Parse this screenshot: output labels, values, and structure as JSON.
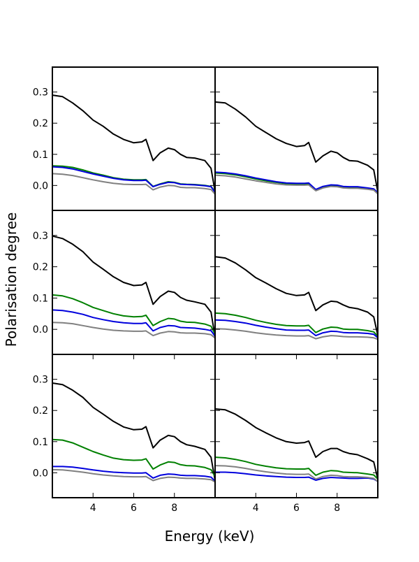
{
  "figure": {
    "xlabel": "Energy (keV)",
    "ylabel": "Polarisation degree"
  },
  "series_colors": {
    "black": "#000000",
    "green": "#008000",
    "blue": "#0000dd",
    "gray": "#808080"
  },
  "chart_data": [
    {
      "type": "line",
      "panel": "row1-left",
      "xlim": [
        2,
        10
      ],
      "ylim": [
        -0.08,
        0.38
      ],
      "xticks": [],
      "yticks": [
        0.0,
        0.1,
        0.2,
        0.3
      ],
      "x": [
        2.0,
        2.5,
        3.0,
        3.5,
        4.0,
        4.5,
        5.0,
        5.5,
        6.0,
        6.4,
        6.6,
        6.95,
        7.3,
        7.7,
        8.0,
        8.3,
        8.6,
        9.0,
        9.5,
        9.8,
        10.0
      ],
      "series": [
        {
          "color": "black",
          "values": [
            0.29,
            0.285,
            0.265,
            0.24,
            0.21,
            0.19,
            0.165,
            0.148,
            0.137,
            0.14,
            0.148,
            0.08,
            0.105,
            0.12,
            0.115,
            0.1,
            0.09,
            0.088,
            0.08,
            0.055,
            -0.02
          ]
        },
        {
          "color": "green",
          "values": [
            0.063,
            0.062,
            0.058,
            0.05,
            0.04,
            0.033,
            0.025,
            0.02,
            0.018,
            0.018,
            0.019,
            -0.003,
            0.005,
            0.012,
            0.01,
            0.005,
            0.004,
            0.003,
            0.0,
            -0.003,
            -0.02
          ]
        },
        {
          "color": "blue",
          "values": [
            0.06,
            0.058,
            0.053,
            0.045,
            0.037,
            0.03,
            0.023,
            0.018,
            0.016,
            0.016,
            0.017,
            -0.004,
            0.004,
            0.01,
            0.009,
            0.004,
            0.003,
            0.002,
            -0.001,
            -0.004,
            -0.022
          ]
        },
        {
          "color": "gray",
          "values": [
            0.038,
            0.036,
            0.032,
            0.025,
            0.018,
            0.012,
            0.007,
            0.004,
            0.003,
            0.003,
            0.004,
            -0.014,
            -0.005,
            0.0,
            -0.001,
            -0.006,
            -0.007,
            -0.007,
            -0.01,
            -0.013,
            -0.028
          ]
        }
      ]
    },
    {
      "type": "line",
      "panel": "row1-right",
      "xlim": [
        2,
        10
      ],
      "ylim": [
        -0.08,
        0.38
      ],
      "xticks": [],
      "yticks": [
        0.0,
        0.1,
        0.2,
        0.3
      ],
      "x": [
        2.0,
        2.5,
        3.0,
        3.5,
        4.0,
        4.5,
        5.0,
        5.5,
        6.0,
        6.4,
        6.6,
        6.95,
        7.3,
        7.7,
        8.0,
        8.3,
        8.6,
        9.0,
        9.5,
        9.8,
        10.0
      ],
      "series": [
        {
          "color": "black",
          "values": [
            0.268,
            0.265,
            0.245,
            0.22,
            0.19,
            0.17,
            0.15,
            0.135,
            0.125,
            0.128,
            0.138,
            0.075,
            0.095,
            0.11,
            0.105,
            0.09,
            0.08,
            0.078,
            0.065,
            0.05,
            -0.02
          ]
        },
        {
          "color": "green",
          "values": [
            0.04,
            0.038,
            0.034,
            0.028,
            0.021,
            0.015,
            0.01,
            0.006,
            0.005,
            0.005,
            0.006,
            -0.015,
            -0.005,
            0.0,
            -0.001,
            -0.005,
            -0.006,
            -0.006,
            -0.01,
            -0.013,
            -0.025
          ]
        },
        {
          "color": "blue",
          "values": [
            0.043,
            0.041,
            0.037,
            0.031,
            0.024,
            0.018,
            0.012,
            0.008,
            0.007,
            0.007,
            0.008,
            -0.013,
            -0.003,
            0.002,
            0.001,
            -0.003,
            -0.004,
            -0.004,
            -0.008,
            -0.011,
            -0.023
          ]
        },
        {
          "color": "gray",
          "values": [
            0.033,
            0.031,
            0.027,
            0.021,
            0.015,
            0.01,
            0.005,
            0.002,
            0.001,
            0.001,
            0.002,
            -0.017,
            -0.008,
            -0.003,
            -0.004,
            -0.008,
            -0.009,
            -0.009,
            -0.012,
            -0.015,
            -0.027
          ]
        }
      ]
    },
    {
      "type": "line",
      "panel": "row2-left",
      "xlim": [
        2,
        10
      ],
      "ylim": [
        -0.08,
        0.38
      ],
      "xticks": [],
      "yticks": [
        0.0,
        0.1,
        0.2,
        0.3
      ],
      "x": [
        2.0,
        2.5,
        3.0,
        3.5,
        4.0,
        4.5,
        5.0,
        5.5,
        6.0,
        6.4,
        6.6,
        6.95,
        7.3,
        7.7,
        8.0,
        8.3,
        8.6,
        9.0,
        9.5,
        9.8,
        10.0
      ],
      "series": [
        {
          "color": "black",
          "values": [
            0.298,
            0.29,
            0.272,
            0.248,
            0.215,
            0.192,
            0.168,
            0.15,
            0.14,
            0.142,
            0.15,
            0.08,
            0.105,
            0.122,
            0.118,
            0.102,
            0.093,
            0.088,
            0.08,
            0.055,
            -0.025
          ]
        },
        {
          "color": "green",
          "values": [
            0.11,
            0.107,
            0.098,
            0.085,
            0.07,
            0.06,
            0.05,
            0.043,
            0.04,
            0.041,
            0.045,
            0.012,
            0.025,
            0.035,
            0.033,
            0.026,
            0.023,
            0.022,
            0.017,
            0.01,
            -0.015
          ]
        },
        {
          "color": "blue",
          "values": [
            0.062,
            0.06,
            0.055,
            0.048,
            0.038,
            0.031,
            0.025,
            0.021,
            0.019,
            0.019,
            0.021,
            -0.005,
            0.006,
            0.012,
            0.011,
            0.006,
            0.005,
            0.004,
            0.0,
            -0.004,
            -0.022
          ]
        },
        {
          "color": "gray",
          "values": [
            0.022,
            0.021,
            0.018,
            0.012,
            0.006,
            0.001,
            -0.003,
            -0.005,
            -0.006,
            -0.006,
            -0.005,
            -0.02,
            -0.012,
            -0.007,
            -0.008,
            -0.011,
            -0.012,
            -0.012,
            -0.014,
            -0.017,
            -0.028
          ]
        }
      ]
    },
    {
      "type": "line",
      "panel": "row2-right",
      "xlim": [
        2,
        10
      ],
      "ylim": [
        -0.08,
        0.38
      ],
      "xticks": [],
      "yticks": [
        0.0,
        0.1,
        0.2,
        0.3
      ],
      "x": [
        2.0,
        2.5,
        3.0,
        3.5,
        4.0,
        4.5,
        5.0,
        5.5,
        6.0,
        6.4,
        6.6,
        6.95,
        7.3,
        7.7,
        8.0,
        8.3,
        8.6,
        9.0,
        9.5,
        9.8,
        10.0
      ],
      "series": [
        {
          "color": "black",
          "values": [
            0.232,
            0.228,
            0.212,
            0.19,
            0.165,
            0.148,
            0.13,
            0.115,
            0.108,
            0.11,
            0.118,
            0.06,
            0.078,
            0.09,
            0.088,
            0.078,
            0.07,
            0.066,
            0.055,
            0.04,
            -0.02
          ]
        },
        {
          "color": "green",
          "values": [
            0.052,
            0.05,
            0.045,
            0.038,
            0.029,
            0.022,
            0.016,
            0.012,
            0.011,
            0.011,
            0.013,
            -0.01,
            0.001,
            0.007,
            0.006,
            0.001,
            0.0,
            0.0,
            -0.004,
            -0.008,
            -0.022
          ]
        },
        {
          "color": "blue",
          "values": [
            0.03,
            0.029,
            0.025,
            0.02,
            0.013,
            0.007,
            0.002,
            -0.002,
            -0.003,
            -0.003,
            -0.002,
            -0.02,
            -0.011,
            -0.006,
            -0.007,
            -0.01,
            -0.011,
            -0.011,
            -0.013,
            -0.016,
            -0.027
          ]
        },
        {
          "color": "gray",
          "values": [
            0.002,
            0.001,
            -0.002,
            -0.006,
            -0.011,
            -0.015,
            -0.018,
            -0.02,
            -0.021,
            -0.021,
            -0.02,
            -0.03,
            -0.024,
            -0.02,
            -0.021,
            -0.023,
            -0.024,
            -0.024,
            -0.025,
            -0.027,
            -0.032
          ]
        }
      ]
    },
    {
      "type": "line",
      "panel": "row3-left",
      "xlim": [
        2,
        10
      ],
      "ylim": [
        -0.08,
        0.38
      ],
      "xticks": [
        4,
        6,
        8
      ],
      "yticks": [
        0.0,
        0.1,
        0.2,
        0.3
      ],
      "x": [
        2.0,
        2.5,
        3.0,
        3.5,
        4.0,
        4.5,
        5.0,
        5.5,
        6.0,
        6.4,
        6.6,
        6.95,
        7.3,
        7.7,
        8.0,
        8.3,
        8.6,
        9.0,
        9.5,
        9.8,
        10.0
      ],
      "series": [
        {
          "color": "black",
          "values": [
            0.288,
            0.283,
            0.265,
            0.242,
            0.21,
            0.188,
            0.165,
            0.147,
            0.138,
            0.14,
            0.148,
            0.08,
            0.105,
            0.12,
            0.116,
            0.1,
            0.09,
            0.085,
            0.075,
            0.05,
            -0.025
          ]
        },
        {
          "color": "green",
          "values": [
            0.107,
            0.105,
            0.096,
            0.082,
            0.068,
            0.057,
            0.047,
            0.042,
            0.04,
            0.041,
            0.045,
            0.012,
            0.025,
            0.035,
            0.033,
            0.026,
            0.023,
            0.022,
            0.017,
            0.01,
            -0.012
          ]
        },
        {
          "color": "blue",
          "values": [
            0.02,
            0.02,
            0.018,
            0.014,
            0.009,
            0.005,
            0.002,
            0.0,
            -0.001,
            -0.001,
            0.0,
            -0.017,
            -0.008,
            -0.004,
            -0.005,
            -0.008,
            -0.009,
            -0.009,
            -0.011,
            -0.014,
            -0.027
          ]
        },
        {
          "color": "gray",
          "values": [
            0.01,
            0.009,
            0.006,
            0.002,
            -0.003,
            -0.007,
            -0.01,
            -0.012,
            -0.013,
            -0.013,
            -0.012,
            -0.025,
            -0.018,
            -0.014,
            -0.015,
            -0.017,
            -0.018,
            -0.018,
            -0.02,
            -0.022,
            -0.03
          ]
        }
      ]
    },
    {
      "type": "line",
      "panel": "row3-right",
      "xlim": [
        2,
        10
      ],
      "ylim": [
        -0.08,
        0.38
      ],
      "xticks": [
        4,
        6,
        8
      ],
      "yticks": [
        0.0,
        0.1,
        0.2,
        0.3
      ],
      "x": [
        2.0,
        2.5,
        3.0,
        3.5,
        4.0,
        4.5,
        5.0,
        5.5,
        6.0,
        6.4,
        6.6,
        6.95,
        7.3,
        7.7,
        8.0,
        8.3,
        8.6,
        9.0,
        9.5,
        9.8,
        10.0
      ],
      "series": [
        {
          "color": "black",
          "values": [
            0.205,
            0.202,
            0.188,
            0.168,
            0.145,
            0.128,
            0.112,
            0.1,
            0.095,
            0.097,
            0.102,
            0.05,
            0.068,
            0.078,
            0.078,
            0.068,
            0.062,
            0.058,
            0.045,
            0.035,
            -0.02
          ]
        },
        {
          "color": "green",
          "values": [
            0.05,
            0.048,
            0.043,
            0.036,
            0.027,
            0.021,
            0.016,
            0.013,
            0.012,
            0.012,
            0.014,
            -0.008,
            0.002,
            0.007,
            0.006,
            0.002,
            0.001,
            0.0,
            -0.004,
            -0.007,
            -0.02
          ]
        },
        {
          "color": "blue",
          "values": [
            0.002,
            0.002,
            0.0,
            -0.003,
            -0.007,
            -0.01,
            -0.012,
            -0.014,
            -0.015,
            -0.015,
            -0.014,
            -0.024,
            -0.018,
            -0.015,
            -0.016,
            -0.017,
            -0.018,
            -0.018,
            -0.017,
            -0.02,
            -0.028
          ]
        },
        {
          "color": "gray",
          "values": [
            0.023,
            0.022,
            0.019,
            0.014,
            0.008,
            0.003,
            -0.001,
            -0.004,
            -0.005,
            -0.005,
            -0.004,
            -0.02,
            -0.012,
            -0.008,
            -0.009,
            -0.012,
            -0.013,
            -0.013,
            -0.015,
            -0.018,
            -0.028
          ]
        }
      ]
    }
  ]
}
